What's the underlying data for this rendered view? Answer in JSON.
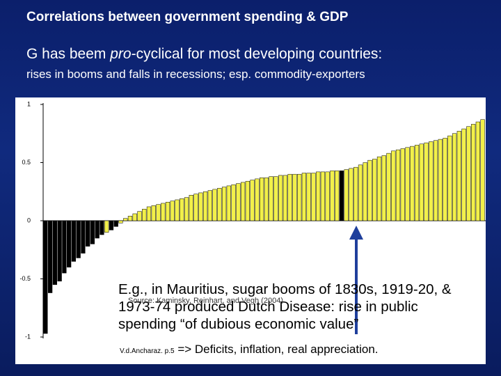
{
  "title": "Correlations between government spending & GDP",
  "subtitle": {
    "before": "G has beem ",
    "italic": "pro",
    "after": "-cyclical for most developing countries:"
  },
  "subtitle2": "rises in booms and falls in recessions; esp. commodity-exporters",
  "chart_data": {
    "type": "bar",
    "categories": [
      null,
      null,
      null,
      null,
      null,
      null,
      null,
      null,
      null,
      null,
      null,
      null,
      null,
      null,
      null,
      null,
      null,
      null,
      null,
      null,
      null,
      null,
      null,
      null,
      null,
      null,
      null,
      null,
      null,
      null,
      null,
      null,
      null,
      null,
      null,
      null,
      null,
      null,
      null,
      null,
      null,
      null,
      null,
      null,
      null,
      null,
      null,
      null,
      null,
      null,
      null,
      null,
      null,
      null,
      null,
      null,
      null,
      null,
      null,
      null,
      null,
      null,
      null,
      null,
      null,
      null,
      null,
      null,
      null,
      null,
      null,
      null,
      null,
      null,
      null,
      null,
      null,
      null,
      null,
      null,
      null,
      null,
      null,
      null,
      null,
      null,
      null,
      null,
      null,
      null,
      null,
      null,
      null,
      null
    ],
    "values": [
      -0.97,
      -0.62,
      -0.55,
      -0.52,
      -0.45,
      -0.4,
      -0.35,
      -0.32,
      -0.28,
      -0.22,
      -0.2,
      -0.15,
      -0.12,
      -0.1,
      -0.08,
      -0.05,
      -0.02,
      0.02,
      0.04,
      0.06,
      0.08,
      0.1,
      0.12,
      0.13,
      0.14,
      0.15,
      0.16,
      0.17,
      0.18,
      0.19,
      0.2,
      0.22,
      0.23,
      0.24,
      0.25,
      0.26,
      0.27,
      0.28,
      0.29,
      0.3,
      0.31,
      0.32,
      0.33,
      0.34,
      0.35,
      0.36,
      0.37,
      0.37,
      0.38,
      0.38,
      0.39,
      0.39,
      0.4,
      0.4,
      0.4,
      0.41,
      0.41,
      0.41,
      0.42,
      0.42,
      0.42,
      0.43,
      0.43,
      0.43,
      0.44,
      0.45,
      0.46,
      0.48,
      0.5,
      0.52,
      0.53,
      0.55,
      0.56,
      0.58,
      0.6,
      0.61,
      0.62,
      0.63,
      0.64,
      0.65,
      0.66,
      0.67,
      0.68,
      0.69,
      0.7,
      0.71,
      0.73,
      0.75,
      0.77,
      0.79,
      0.81,
      0.83,
      0.85,
      0.87
    ],
    "bar_colors": [
      "#000000",
      "#000000",
      "#000000",
      "#000000",
      "#000000",
      "#000000",
      "#000000",
      "#000000",
      "#000000",
      "#000000",
      "#000000",
      "#000000",
      "#000000",
      "#f2f04a",
      "#000000",
      "#000000",
      "#f2f04a",
      "#f2f04a",
      "#f2f04a",
      "#f2f04a",
      "#f2f04a",
      "#f2f04a",
      "#f2f04a",
      "#f2f04a",
      "#f2f04a",
      "#f2f04a",
      "#f2f04a",
      "#f2f04a",
      "#f2f04a",
      "#f2f04a",
      "#f2f04a",
      "#f2f04a",
      "#f2f04a",
      "#f2f04a",
      "#f2f04a",
      "#f2f04a",
      "#f2f04a",
      "#f2f04a",
      "#f2f04a",
      "#f2f04a",
      "#f2f04a",
      "#f2f04a",
      "#f2f04a",
      "#f2f04a",
      "#f2f04a",
      "#f2f04a",
      "#f2f04a",
      "#f2f04a",
      "#f2f04a",
      "#f2f04a",
      "#f2f04a",
      "#f2f04a",
      "#f2f04a",
      "#f2f04a",
      "#f2f04a",
      "#f2f04a",
      "#f2f04a",
      "#f2f04a",
      "#f2f04a",
      "#f2f04a",
      "#f2f04a",
      "#f2f04a",
      "#f2f04a",
      "#000000",
      "#f2f04a",
      "#f2f04a",
      "#f2f04a",
      "#f2f04a",
      "#f2f04a",
      "#f2f04a",
      "#f2f04a",
      "#f2f04a",
      "#f2f04a",
      "#f2f04a",
      "#f2f04a",
      "#f2f04a",
      "#f2f04a",
      "#f2f04a",
      "#f2f04a",
      "#f2f04a",
      "#f2f04a",
      "#f2f04a",
      "#f2f04a",
      "#f2f04a",
      "#f2f04a",
      "#f2f04a",
      "#f2f04a",
      "#f2f04a",
      "#f2f04a",
      "#f2f04a",
      "#f2f04a",
      "#f2f04a",
      "#f2f04a",
      "#f2f04a"
    ],
    "ylim": [
      -1,
      1
    ],
    "yticks": [
      -1,
      -0.5,
      0,
      0.5,
      1
    ],
    "grid": false
  },
  "annotation": "E.g., in Mauritius, sugar booms of 1830s, 1919-20, & 1973-74 produced Dutch Disease: rise in public spending “of dubious economic value”",
  "source": "Source: Kaminsky, Reinhart, and Vegh (2004)",
  "citation": "V.d.Ancharaz. p.5",
  "conclusion": "=> Deficits, inflation, real appreciation."
}
